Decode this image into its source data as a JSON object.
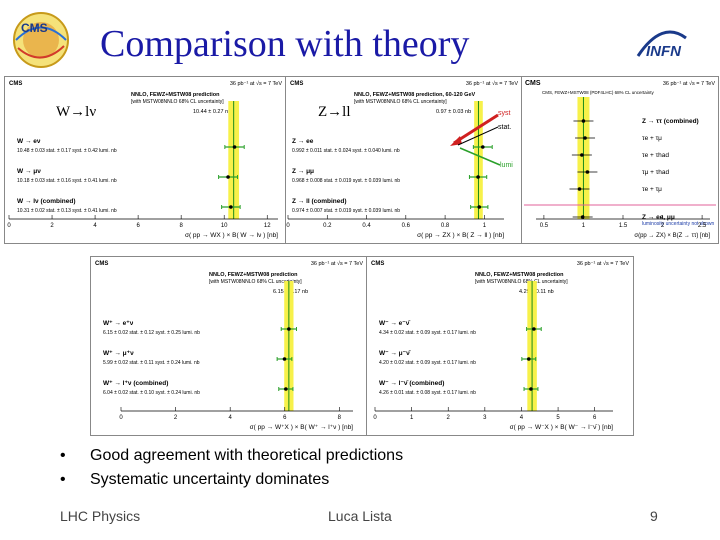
{
  "slide": {
    "title": "Comparison with theory",
    "logo_left": "CMS",
    "logo_right": "INFN",
    "bullets": [
      "Good agreement with theoretical predictions",
      "Systematic uncertainty dominates"
    ],
    "footer_left": "LHC Physics",
    "footer_center": "Luca Lista",
    "page_number": "9"
  },
  "overlays": {
    "w_label": "W→lν",
    "z_label": "Z→ll",
    "syst": "syst",
    "stat": "stat.",
    "lumi": "lumi"
  },
  "colors": {
    "title": "#1a1aa6",
    "band": "#f7f14a",
    "band_edge": "#c8c300",
    "center_line": "#1a8a1a",
    "err_bar": "#2aa02a",
    "arrow": "#d02020"
  },
  "chart_data": [
    {
      "type": "scatter",
      "header": "CMS",
      "lumi": "36 pb⁻¹ at √s = 7 TeV",
      "theory": "NNLO, FEWZ+MSTW08 prediction",
      "theory_note": "[with MSTW08NNLO 68% CL uncertainty]",
      "theory_value": "10.44 ± 0.27 nb",
      "prediction": 10.44,
      "entries": [
        {
          "label": "W → eν",
          "text": "10.48 ± 0.03 stat. ± 0.17 syst. ± 0.42 lumi. nb",
          "value": 10.48,
          "err": 0.45
        },
        {
          "label": "W → μν",
          "text": "10.18 ± 0.03 stat. ± 0.16 syst. ± 0.41 lumi. nb",
          "value": 10.18,
          "err": 0.44
        },
        {
          "label": "W → lν (combined)",
          "text": "10.31 ± 0.02 stat. ± 0.13 syst. ± 0.41 lumi. nb",
          "value": 10.31,
          "err": 0.43
        }
      ],
      "xlabel": "σ( pp → WX ) × B( W → lν ) [nb]",
      "xticks": [
        0,
        2,
        4,
        6,
        8,
        10,
        12
      ],
      "xlim": [
        0,
        12.5
      ]
    },
    {
      "type": "scatter",
      "header": "CMS",
      "lumi": "36 pb⁻¹ at √s = 7 TeV",
      "theory": "NNLO, FEWZ+MSTW08 prediction, 60-120 GeV",
      "theory_note": "[with MSTW08NNLO 68% CL uncertainty]",
      "theory_value": "0.97 ± 0.03 nb",
      "prediction": 0.97,
      "entries": [
        {
          "label": "Z → ee",
          "text": "0.992 ± 0.011 stat. ± 0.024 syst. ± 0.040 lumi. nb",
          "value": 0.992,
          "err": 0.048
        },
        {
          "label": "Z → μμ",
          "text": "0.968 ± 0.008 stat. ± 0.019 syst. ± 0.039 lumi. nb",
          "value": 0.968,
          "err": 0.044
        },
        {
          "label": "Z → ll (combined)",
          "text": "0.974 ± 0.007 stat. ± 0.019 syst. ± 0.039 lumi. nb",
          "value": 0.974,
          "err": 0.044
        }
      ],
      "xlabel": "σ( pp → ZX ) × B( Z → ll ) [nb]",
      "xticks": [
        0,
        0.2,
        0.4,
        0.6,
        0.8,
        1
      ],
      "xlim": [
        0,
        1.1
      ]
    },
    {
      "type": "scatter",
      "header": "CMS",
      "lumi": "36 pb⁻¹ at √s = 7 TeV",
      "theory": "CMS, FEWZ+MSTW08 (PDF4LHC) 68% CL uncertainty",
      "rows": [
        "Z → ττ (combined)",
        "τe + τμ",
        "τe + τhad",
        "τμ + τhad",
        "τe + τμ",
        "Z → ee, μμ"
      ],
      "note": "luminosity uncertainty not shown",
      "prediction": 1.0,
      "points": [
        1.0,
        1.02,
        0.98,
        1.05,
        0.95,
        0.99
      ],
      "xlabel": "σ(pp → ZX) × B(Z → ττ) [nb]",
      "xticks": [
        0.5,
        1,
        1.5,
        2,
        2.5
      ],
      "xlim": [
        0.4,
        2.6
      ]
    },
    {
      "type": "scatter",
      "header": "CMS",
      "lumi": "36 pb⁻¹ at √s = 7 TeV",
      "theory": "NNLO, FEWZ+MSTW08 prediction",
      "theory_note": "[with MSTW08NNLO 68% CL uncertainty]",
      "theory_value": "6.15 ± 0.17 nb",
      "prediction": 6.15,
      "entries": [
        {
          "label": "W⁺ → e⁺ν",
          "text": "6.15 ± 0.02 stat. ± 0.12 syst. ± 0.25 lumi. nb",
          "value": 6.15,
          "err": 0.28
        },
        {
          "label": "W⁺ → μ⁺ν",
          "text": "5.99 ± 0.02 stat. ± 0.11 syst. ± 0.24 lumi. nb",
          "value": 5.99,
          "err": 0.27
        },
        {
          "label": "W⁺ → l⁺ν (combined)",
          "text": "6.04 ± 0.02 stat. ± 0.10 syst. ± 0.24 lumi. nb",
          "value": 6.04,
          "err": 0.26
        }
      ],
      "xlabel": "σ( pp → W⁺X ) × B( W⁺ → l⁺ν ) [nb]",
      "xticks": [
        0,
        2,
        4,
        6,
        8
      ],
      "xlim": [
        0,
        8.5
      ]
    },
    {
      "type": "scatter",
      "header": "CMS",
      "lumi": "36 pb⁻¹ at √s = 7 TeV",
      "theory": "NNLO, FEWZ+MSTW08 prediction",
      "theory_note": "[with MSTW08NNLO 68% CL uncertainty]",
      "theory_value": "4.29 ± 0.11 nb",
      "prediction": 4.29,
      "entries": [
        {
          "label": "W⁻ → e⁻ν̄",
          "text": "4.34 ± 0.02 stat. ± 0.09 syst. ± 0.17 lumi. nb",
          "value": 4.34,
          "err": 0.2
        },
        {
          "label": "W⁻ → μ⁻ν̄",
          "text": "4.20 ± 0.02 stat. ± 0.09 syst. ± 0.17 lumi. nb",
          "value": 4.2,
          "err": 0.19
        },
        {
          "label": "W⁻ → l⁻ν̄ (combined)",
          "text": "4.26 ± 0.01 stat. ± 0.08 syst. ± 0.17 lumi. nb",
          "value": 4.26,
          "err": 0.19
        }
      ],
      "xlabel": "σ( pp → W⁻X ) × B( W⁻ → l⁻ν̄ ) [nb]",
      "xticks": [
        0,
        1,
        2,
        3,
        4,
        5,
        6
      ],
      "xlim": [
        0,
        6.5
      ]
    }
  ]
}
